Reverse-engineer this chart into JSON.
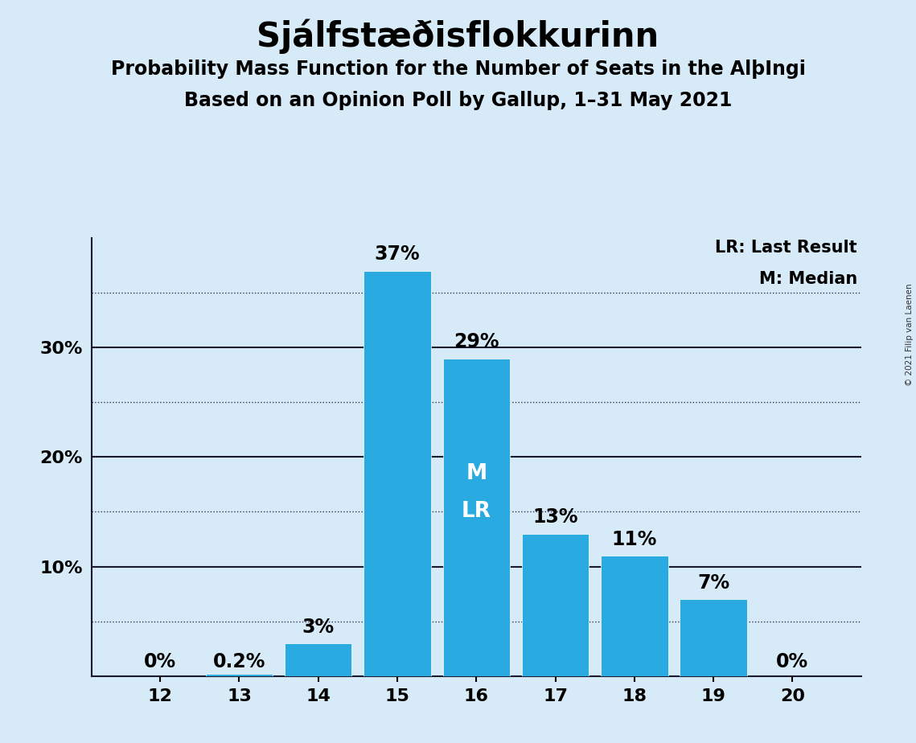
{
  "title": "Sjálfstæðisflokkurinn",
  "subtitle1": "Probability Mass Function for the Number of Seats in the AlþIngi",
  "subtitle2": "Based on an Opinion Poll by Gallup, 1–31 May 2021",
  "copyright": "© 2021 Filip van Laenen",
  "categories": [
    12,
    13,
    14,
    15,
    16,
    17,
    18,
    19,
    20
  ],
  "values": [
    0.0,
    0.2,
    3.0,
    37.0,
    29.0,
    13.0,
    11.0,
    7.0,
    0.0
  ],
  "bar_color": "#29ABE2",
  "background_color": "#D6EAF8",
  "median_seat": 16,
  "last_result_seat": 16,
  "legend_lr": "LR: Last Result",
  "legend_m": "M: Median",
  "ylim": [
    0,
    40
  ],
  "solid_lines": [
    10,
    20,
    30
  ],
  "dotted_lines": [
    5,
    15,
    25,
    35
  ],
  "ytick_vals": [
    10,
    20,
    30
  ],
  "ytick_labels": [
    "10%",
    "20%",
    "30%"
  ],
  "title_fontsize": 30,
  "subtitle_fontsize": 17,
  "label_fontsize": 15,
  "tick_fontsize": 16,
  "bar_label_fontsize": 17,
  "legend_fontsize": 15,
  "bar_annotations": [
    "0%",
    "0.2%",
    "3%",
    "37%",
    "29%",
    "13%",
    "11%",
    "7%",
    "0%"
  ]
}
